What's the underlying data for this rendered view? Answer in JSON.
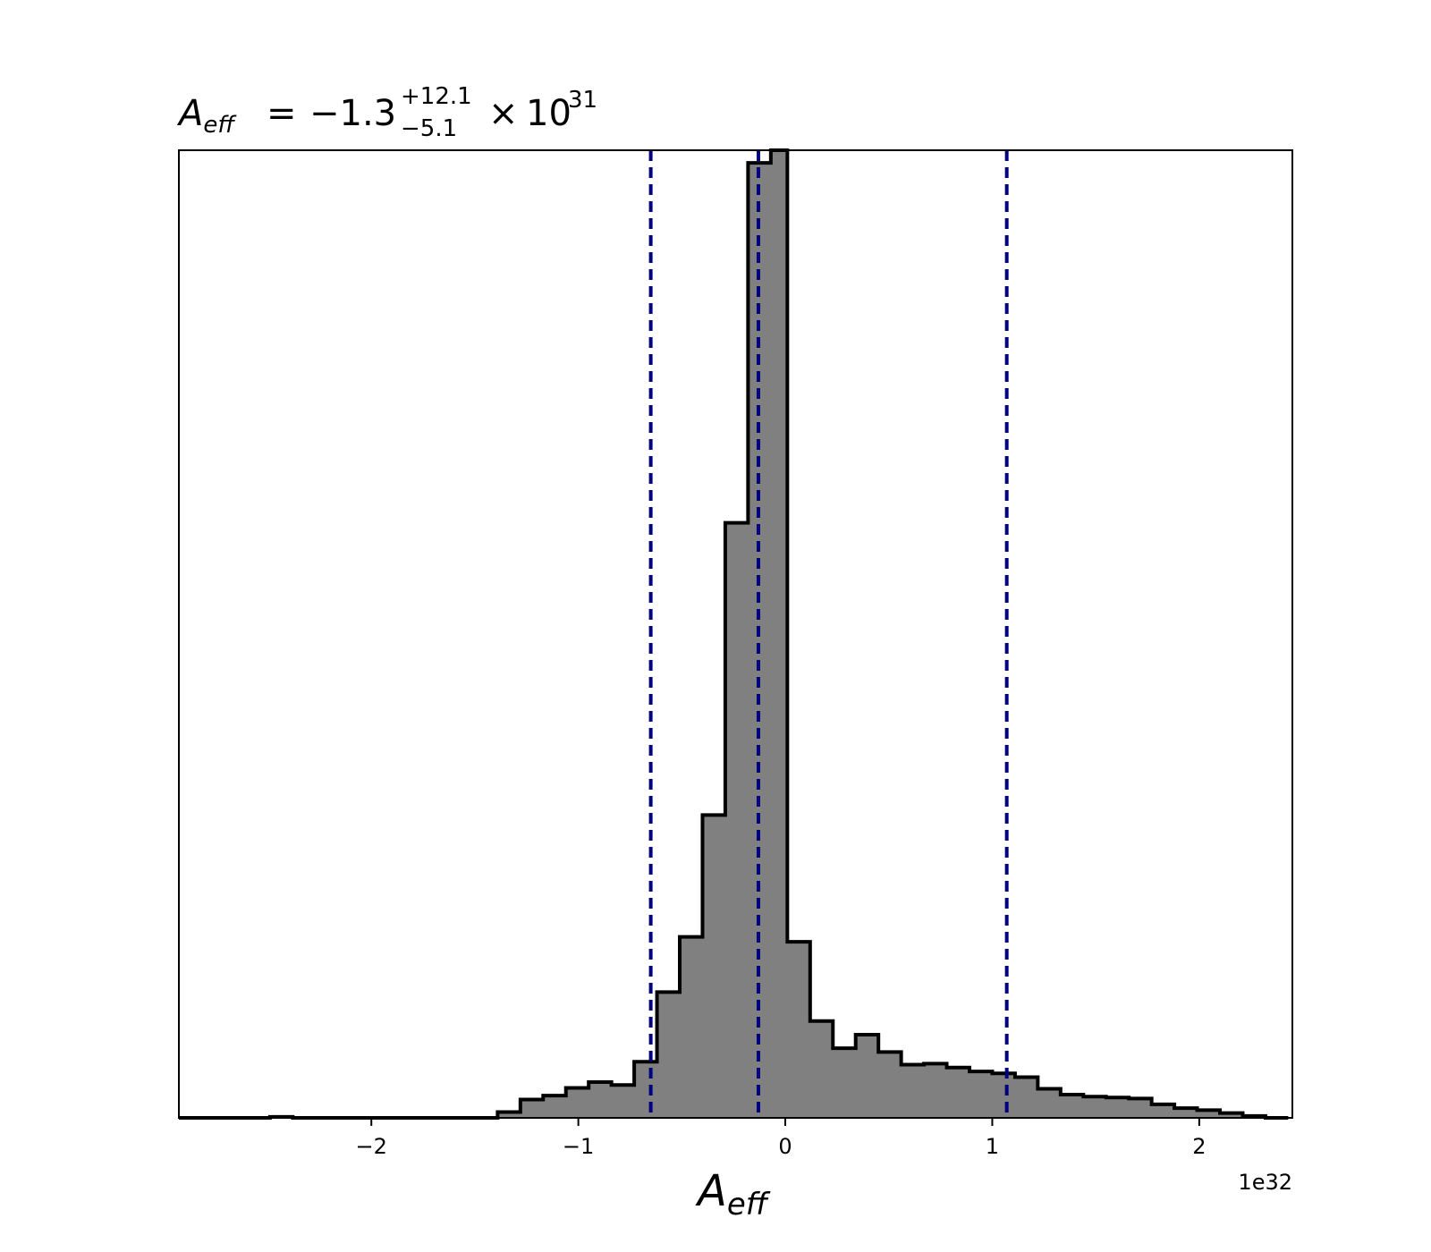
{
  "chart_data": {
    "type": "histogram",
    "title": {
      "lhs_symbol": "A",
      "lhs_subscript": "eff",
      "equals": "=",
      "median": "−1.3",
      "upper_error": "+12.1",
      "lower_error": "−5.1",
      "times": "×",
      "multiplier_base": "10",
      "multiplier_exponent": "31"
    },
    "xlabel": {
      "symbol": "A",
      "subscript": "eff"
    },
    "x_offset_label": "1e32",
    "x_scale": 1e+32,
    "xlim": [
      -2.93,
      2.45
    ],
    "ylim": [
      0,
      1000
    ],
    "y_axis_shown": false,
    "x_ticks": [
      -2,
      -1,
      0,
      1,
      2
    ],
    "x_tick_labels": [
      "−2",
      "−1",
      "0",
      "1",
      "2"
    ],
    "grid": false,
    "legend": "none",
    "fill_color": "#808080",
    "edge_color": "#000000",
    "quantile_line_color": "#00007f",
    "quantile_lines": [
      -0.65,
      -0.13,
      1.07
    ],
    "bin_edges": [
      -2.93,
      -2.82,
      -2.71,
      -2.6,
      -2.49,
      -2.38,
      -2.27,
      -2.16,
      -2.05,
      -1.94,
      -1.83,
      -1.72,
      -1.61,
      -1.5,
      -1.39,
      -1.28,
      -1.17,
      -1.06,
      -0.95,
      -0.84,
      -0.73,
      -0.62,
      -0.51,
      -0.4,
      -0.29,
      -0.18,
      -0.07,
      0.01,
      0.12,
      0.23,
      0.34,
      0.45,
      0.56,
      0.67,
      0.78,
      0.89,
      1.0,
      1.11,
      1.22,
      1.33,
      1.44,
      1.55,
      1.66,
      1.77,
      1.88,
      1.99,
      2.1,
      2.21,
      2.32,
      2.43
    ],
    "counts": [
      0,
      0,
      0,
      0,
      1,
      0,
      0,
      0,
      0,
      0,
      0,
      0,
      0,
      0,
      6,
      19,
      23,
      31,
      37,
      34,
      58,
      130,
      187,
      313,
      615,
      987,
      1050,
      182,
      100,
      72,
      86,
      68,
      55,
      56,
      52,
      48,
      46,
      42,
      30,
      24,
      22,
      21,
      20,
      14,
      10,
      8,
      5,
      2,
      0
    ]
  }
}
